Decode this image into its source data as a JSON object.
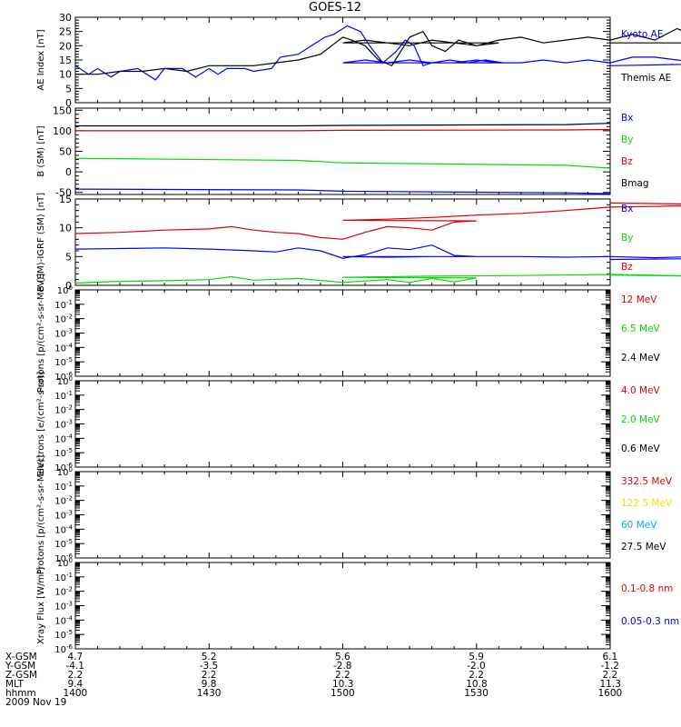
{
  "title": "GOES-12",
  "colors": {
    "black": "#000000",
    "blue": "#0000ff",
    "red": "#dd0000",
    "green": "#00dd00",
    "yellow": "#f0e000",
    "cyan": "#00aaee"
  },
  "chart_data": [
    {
      "type": "line",
      "ylabel": "AE Index [nT]",
      "ylim": [
        0,
        30
      ],
      "yticks": [
        0,
        5,
        10,
        15,
        20,
        25,
        30
      ],
      "xlim": [
        1400,
        1600
      ],
      "legend": [
        {
          "label": "Kyoto AE",
          "color": "blue"
        },
        {
          "label": "Themis AE",
          "color": "black"
        }
      ],
      "series": [
        {
          "name": "Kyoto AE",
          "color": "blue",
          "x": [
            1400,
            1403,
            1405,
            1408,
            1410,
            1414,
            1418,
            1420,
            1422,
            1424,
            1427,
            1430,
            1432,
            1434,
            1438,
            1440,
            1444,
            1446,
            1450,
            1453,
            1456,
            1458,
            1461,
            1464,
            1466,
            1469,
            1472,
            1474,
            1476,
            1478,
            1480,
            1484,
            1488,
            1492,
            1496,
            1500,
            1505,
            1510,
            1515,
            1520,
            1525,
            1530,
            1535,
            1540,
            1545,
            1550,
            1555,
            1560,
            1565,
            1570,
            1575,
            1580,
            1585,
            1590,
            1595,
            1600
          ],
          "y": [
            13,
            10,
            12,
            9,
            11,
            12,
            8,
            12,
            12,
            12,
            9,
            12,
            10,
            12,
            12,
            11,
            12,
            16,
            17,
            20,
            23,
            24,
            27,
            25,
            20,
            14,
            18,
            22,
            20,
            13,
            14,
            15,
            14,
            15,
            14,
            14,
            15,
            14,
            15,
            14,
            14,
            15,
            14,
            14,
            15,
            14,
            15,
            14,
            16,
            16,
            15,
            14,
            13,
            13,
            14,
            13
          ]
        },
        {
          "name": "Themis AE",
          "color": "black",
          "x": [
            1400,
            1405,
            1410,
            1415,
            1420,
            1425,
            1430,
            1435,
            1440,
            1445,
            1450,
            1455,
            1460,
            1462,
            1465,
            1468,
            1471,
            1473,
            1475,
            1478,
            1480,
            1483,
            1486,
            1490,
            1495,
            1500,
            1505,
            1510,
            1515,
            1520,
            1525,
            1530,
            1535,
            1540,
            1545,
            1550,
            1555,
            1560,
            1565,
            1570,
            1575,
            1580,
            1585,
            1590,
            1595,
            1600
          ],
          "y": [
            10,
            10,
            11,
            11,
            12,
            11,
            13,
            13,
            13,
            14,
            15,
            17,
            23,
            22,
            20,
            15,
            13,
            18,
            23,
            25,
            20,
            18,
            22,
            20,
            21,
            21,
            22,
            21,
            20,
            22,
            21,
            20,
            22,
            23,
            21,
            22,
            23,
            22,
            24,
            22,
            26,
            23,
            22,
            23,
            21,
            21
          ]
        }
      ]
    },
    {
      "type": "line",
      "ylabel": "B (SM) [nT]",
      "ylim": [
        -55,
        155
      ],
      "yticks": [
        -50,
        0,
        50,
        100,
        150
      ],
      "xlim": [
        1400,
        1600
      ],
      "legend": [
        {
          "label": "Bx",
          "color": "blue"
        },
        {
          "label": "By",
          "color": "green"
        },
        {
          "label": "Bz",
          "color": "red"
        },
        {
          "label": "Bmag",
          "color": "black"
        }
      ],
      "series": [
        {
          "name": "Bx",
          "color": "blue",
          "x": [
            1400,
            1450,
            1500,
            1550,
            1600
          ],
          "y": [
            -42,
            -44,
            -47,
            -51,
            -53
          ]
        },
        {
          "name": "By",
          "color": "green",
          "x": [
            1400,
            1450,
            1500,
            1550,
            1600
          ],
          "y": [
            33,
            28,
            22,
            16,
            9
          ]
        },
        {
          "name": "Bz",
          "color": "red",
          "x": [
            1400,
            1450,
            1500,
            1550,
            1600
          ],
          "y": [
            100,
            100,
            101,
            102,
            103
          ]
        },
        {
          "name": "Bmag",
          "color": "black",
          "x": [
            1400,
            1450,
            1500,
            1550,
            1600
          ],
          "y": [
            112,
            112,
            113,
            115,
            118
          ]
        }
      ]
    },
    {
      "type": "line",
      "ylabel": "B (SM)-IGRF (SM) [nT]",
      "ylim": [
        0,
        15
      ],
      "yticks": [
        0,
        5,
        10,
        15
      ],
      "xlim": [
        1400,
        1600
      ],
      "legend": [
        {
          "label": "Bx",
          "color": "blue"
        },
        {
          "label": "By",
          "color": "green"
        },
        {
          "label": "Bz",
          "color": "red"
        }
      ],
      "series": [
        {
          "name": "Bx",
          "color": "blue",
          "x": [
            1400,
            1410,
            1420,
            1430,
            1440,
            1445,
            1450,
            1455,
            1460,
            1465,
            1470,
            1475,
            1480,
            1485,
            1490,
            1495,
            1500,
            1510,
            1520,
            1530,
            1540,
            1550,
            1560,
            1570,
            1580,
            1590,
            1600
          ],
          "y": [
            6.3,
            6.4,
            6.5,
            6.3,
            6.0,
            5.8,
            6.5,
            6.0,
            4.7,
            5.3,
            6.5,
            6.2,
            7.0,
            5.2,
            5.0,
            5.0,
            5.0,
            4.9,
            5.0,
            5.0,
            5.0,
            4.9,
            5.0,
            4.8,
            5.0,
            4.7,
            4.5
          ]
        },
        {
          "name": "By",
          "color": "green",
          "x": [
            1400,
            1410,
            1420,
            1430,
            1435,
            1440,
            1450,
            1460,
            1470,
            1475,
            1480,
            1485,
            1490,
            1500,
            1520,
            1540,
            1560,
            1580,
            1600
          ],
          "y": [
            0.4,
            0.7,
            0.8,
            1.0,
            1.5,
            0.9,
            1.2,
            0.5,
            1.0,
            0.5,
            1.2,
            0.6,
            1.3,
            1.4,
            1.6,
            1.7,
            1.9,
            1.6,
            1.8
          ]
        },
        {
          "name": "Bz",
          "color": "red",
          "x": [
            1400,
            1410,
            1420,
            1430,
            1435,
            1440,
            1445,
            1450,
            1455,
            1460,
            1465,
            1470,
            1475,
            1480,
            1485,
            1490,
            1500,
            1510,
            1520,
            1530,
            1540,
            1550,
            1560,
            1570,
            1580,
            1590,
            1600
          ],
          "y": [
            9.0,
            9.2,
            9.6,
            9.8,
            10.2,
            9.6,
            9.2,
            9.0,
            8.3,
            8.0,
            9.2,
            10.2,
            10.0,
            9.6,
            11.0,
            11.2,
            11.3,
            11.5,
            11.8,
            12.2,
            12.5,
            13.0,
            13.6,
            13.7,
            13.9,
            14.0,
            14.3
          ]
        }
      ]
    },
    {
      "type": "line",
      "log": true,
      "ylabel": "Protons [p/(cm²-s-sr-MeV)]",
      "ylim": [
        1e-06,
        1
      ],
      "tick_exponents": [
        0,
        -1,
        -2,
        -3,
        -4,
        -5,
        -6
      ],
      "legend": [
        {
          "label": "12 MeV",
          "color": "red"
        },
        {
          "label": "6.5 MeV",
          "color": "green"
        },
        {
          "label": "2.4 MeV",
          "color": "black"
        }
      ],
      "series": []
    },
    {
      "type": "line",
      "log": true,
      "ylabel": "Electrons [e/(cm²-s-sr)]",
      "ylim": [
        1e-06,
        1
      ],
      "tick_exponents": [
        0,
        -1,
        -2,
        -3,
        -4,
        -5,
        -6
      ],
      "legend": [
        {
          "label": "4.0 MeV",
          "color": "red"
        },
        {
          "label": "2.0 MeV",
          "color": "green"
        },
        {
          "label": "0.6 MeV",
          "color": "black"
        }
      ],
      "series": []
    },
    {
      "type": "line",
      "log": true,
      "ylabel": "Protons [p/(cm²-s-sr-MeV)]",
      "ylim": [
        1e-06,
        1
      ],
      "tick_exponents": [
        0,
        -1,
        -2,
        -3,
        -4,
        -5,
        -6
      ],
      "legend": [
        {
          "label": "332.5 MeV",
          "color": "red"
        },
        {
          "label": "122.5 MeV",
          "color": "yellow"
        },
        {
          "label": "60 MeV",
          "color": "cyan"
        },
        {
          "label": "27.5 MeV",
          "color": "black"
        }
      ],
      "series": []
    },
    {
      "type": "line",
      "log": true,
      "ylabel": "Xray Flux [W/m²]",
      "ylim": [
        1e-06,
        1
      ],
      "tick_exponents": [
        0,
        -1,
        -2,
        -3,
        -4,
        -5,
        -6
      ],
      "legend": [
        {
          "label": "0.1-0.8 nm",
          "color": "red"
        },
        {
          "label": "0.05-0.3 nm",
          "color": "blue"
        }
      ],
      "series": []
    }
  ],
  "ephemeris": {
    "labels": [
      "X-GSM",
      "Y-GSM",
      "Z-GSM",
      "MLT",
      "hhmm"
    ],
    "columns": [
      [
        "4.7",
        "-4.1",
        "2.2",
        "9.4",
        "1400"
      ],
      [
        "5.2",
        "-3.5",
        "2.2",
        "9.8",
        "1430"
      ],
      [
        "5.6",
        "-2.8",
        "2.2",
        "10.3",
        "1500"
      ],
      [
        "5.9",
        "-2.0",
        "2.2",
        "10.8",
        "1530"
      ],
      [
        "6.1",
        "-1.2",
        "2.2",
        "11.3",
        "1600"
      ]
    ],
    "date": "2009 Nov 19"
  }
}
